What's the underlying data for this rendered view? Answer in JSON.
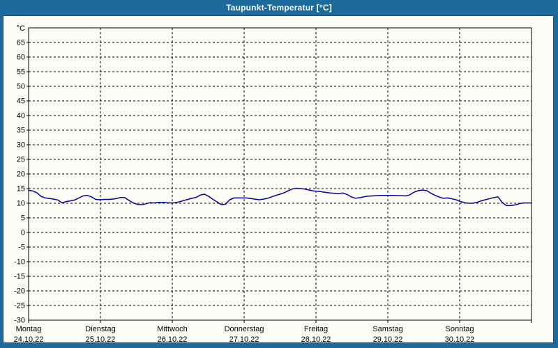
{
  "window": {
    "title": "Taupunkt-Temperatur [°C]"
  },
  "colors": {
    "titlebar_bg": "#1c6a9c",
    "titlebar_text": "#ffffff",
    "panel_bg": "#fcfcf6",
    "panel_border": "#2a4e70",
    "plot_frame": "#000000",
    "grid": "#000000",
    "line": "#0000a0",
    "label_text": "#000000"
  },
  "chart_data": {
    "type": "line",
    "title": "Taupunkt-Temperatur [°C]",
    "unit_label": "°C",
    "ylim": [
      -30,
      70
    ],
    "ytick_step": 5,
    "yticks": [
      65,
      60,
      55,
      50,
      45,
      40,
      35,
      30,
      25,
      20,
      15,
      10,
      5,
      0,
      -5,
      -10,
      -15,
      -20,
      -25,
      -30
    ],
    "grid": "dashed",
    "legend": "none",
    "x_range_days": 7,
    "days": [
      {
        "name": "Montag",
        "date": "24.10.22"
      },
      {
        "name": "Dienstag",
        "date": "25.10.22"
      },
      {
        "name": "Mittwoch",
        "date": "26.10.22"
      },
      {
        "name": "Donnerstag",
        "date": "27.10.22"
      },
      {
        "name": "Freitag",
        "date": "28.10.22"
      },
      {
        "name": "Samstag",
        "date": "29.10.22"
      },
      {
        "name": "Sonntag",
        "date": "30.10.22"
      }
    ],
    "series": [
      {
        "name": "Taupunkt",
        "color": "#0000a0",
        "note": "values evenly spaced from Monday 00:00 to Sunday 24:00",
        "values": [
          14.4,
          14.2,
          13.6,
          12.3,
          11.8,
          11.6,
          11.4,
          11.1,
          10.1,
          10.6,
          10.8,
          11.1,
          11.8,
          12.5,
          12.7,
          12.2,
          11.3,
          11.2,
          11.3,
          11.3,
          11.4,
          11.6,
          12.0,
          11.9,
          10.9,
          10.1,
          9.6,
          9.5,
          9.8,
          10.2,
          10.1,
          10.3,
          10.3,
          10.2,
          10.1,
          10.2,
          10.5,
          10.9,
          11.3,
          11.7,
          12.0,
          12.8,
          13.1,
          12.3,
          11.3,
          10.4,
          9.5,
          9.7,
          11.2,
          11.8,
          11.8,
          11.8,
          11.8,
          11.6,
          11.4,
          11.2,
          11.4,
          11.7,
          12.2,
          12.7,
          13.1,
          13.6,
          14.3,
          14.9,
          15.1,
          15.0,
          14.8,
          14.5,
          14.2,
          14.1,
          13.9,
          13.7,
          13.5,
          13.4,
          13.3,
          13.5,
          13.0,
          12.2,
          11.7,
          11.9,
          12.2,
          12.4,
          12.5,
          12.6,
          12.7,
          12.7,
          12.7,
          12.7,
          12.6,
          12.6,
          12.5,
          12.9,
          13.8,
          14.3,
          14.5,
          14.3,
          13.4,
          12.7,
          12.1,
          11.7,
          11.8,
          11.5,
          11.2,
          10.6,
          10.2,
          10.0,
          10.0,
          10.3,
          10.8,
          11.2,
          11.6,
          11.9,
          12.2,
          10.3,
          9.2,
          9.2,
          9.4,
          9.8,
          10.1,
          10.1,
          10.1
        ]
      }
    ]
  }
}
